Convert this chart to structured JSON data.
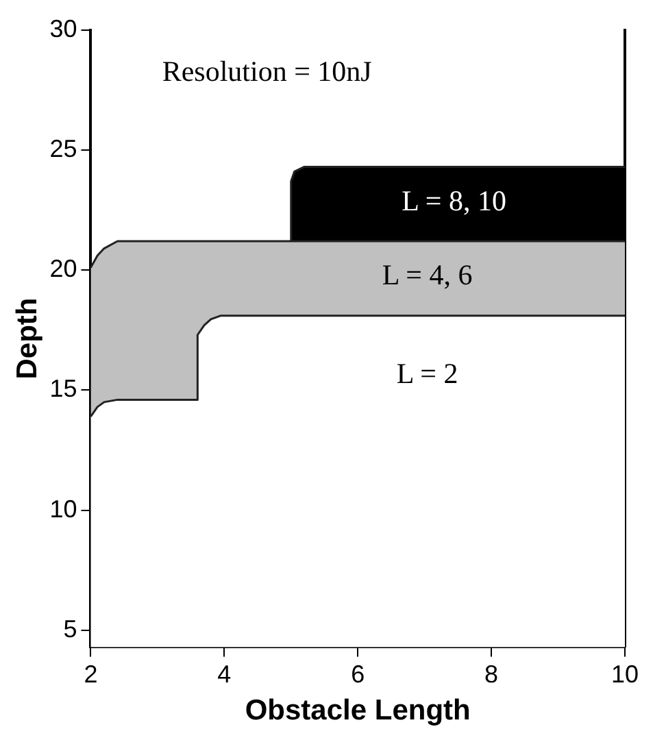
{
  "chart_data": {
    "type": "area",
    "xlabel": "Obstacle Length",
    "ylabel": "Depth",
    "xlim": [
      2,
      10
    ],
    "xticks": [
      2,
      4,
      6,
      8,
      10
    ],
    "ylim": [
      4.3,
      30
    ],
    "yticks": [
      5,
      10,
      15,
      20,
      25,
      30
    ],
    "grid": false,
    "legend": false,
    "series": [
      {
        "color": "#000000",
        "x": [
          5,
          5,
          5.05,
          5.2,
          10
        ],
        "values": [
          21.2,
          23.7,
          24.1,
          24.3,
          24.3
        ]
      },
      {
        "color": "#c0c0c0",
        "x": [
          2,
          2.1,
          2.2,
          2.4,
          10
        ],
        "values": [
          20.1,
          20.6,
          20.9,
          21.2,
          21.2
        ]
      },
      {
        "color": "#ffffff",
        "x": [
          2,
          2.1,
          2.2,
          2.4,
          3.6,
          3.6,
          3.7,
          3.8,
          3.95,
          10
        ],
        "values": [
          13.9,
          14.3,
          14.5,
          14.6,
          14.6,
          17.3,
          17.7,
          17.95,
          18.1,
          18.1
        ]
      }
    ],
    "annotations": [
      "Resolution = 10nJ",
      "L = 8, 10",
      "L = 4, 6",
      "L = 2"
    ]
  }
}
